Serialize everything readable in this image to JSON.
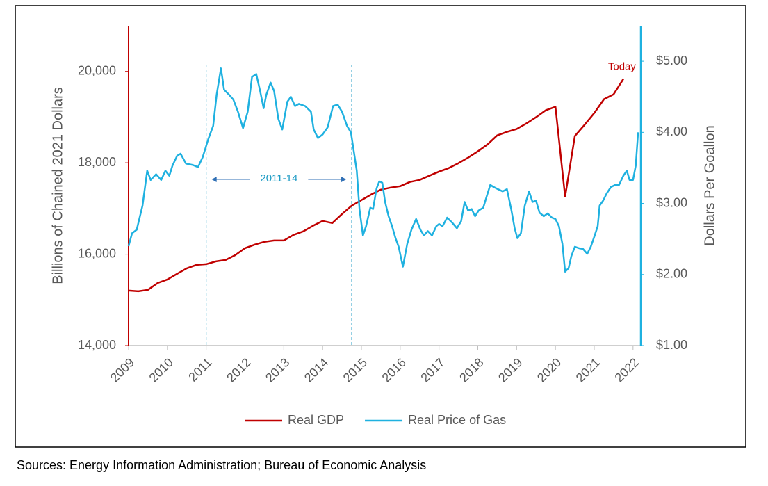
{
  "chart_data": {
    "type": "line",
    "y_label": "Billions of Chained 2021 Dollars",
    "y2_label": "Dollars Per Goallon",
    "annotation": "Today",
    "period": {
      "label": "2011-14",
      "x": [
        2011,
        2014.75
      ]
    },
    "source": "Sources: Energy Information Administration; Bureau of Economic Analysis",
    "xlim": [
      2009,
      2022.2
    ],
    "xticks": [
      2009,
      2010,
      2011,
      2012,
      2013,
      2014,
      2015,
      2016,
      2017,
      2018,
      2019,
      2020,
      2021,
      2022
    ],
    "ylim": [
      14000,
      21000
    ],
    "yticks": [
      {
        "value": 14000,
        "label": "14,000"
      },
      {
        "value": 16000,
        "label": "16,000"
      },
      {
        "value": 18000,
        "label": "18,000"
      },
      {
        "value": 20000,
        "label": "20,000"
      }
    ],
    "y2lim": [
      1,
      5.5
    ],
    "y2ticks": [
      {
        "value": 1,
        "label": "$1.00"
      },
      {
        "value": 2,
        "label": "$2.00"
      },
      {
        "value": 3,
        "label": "$3.00"
      },
      {
        "value": 4,
        "label": "$4.00"
      },
      {
        "value": 5,
        "label": "$5.00"
      }
    ],
    "legend": "bottom",
    "series": [
      {
        "name": "Real GDP",
        "color": "#c00000",
        "axis": "y",
        "x": [
          2009.0,
          2009.25,
          2009.5,
          2009.75,
          2010.0,
          2010.25,
          2010.5,
          2010.75,
          2011.0,
          2011.25,
          2011.5,
          2011.75,
          2012.0,
          2012.25,
          2012.5,
          2012.75,
          2013.0,
          2013.25,
          2013.5,
          2013.75,
          2014.0,
          2014.25,
          2014.5,
          2014.75,
          2015.0,
          2015.25,
          2015.5,
          2015.75,
          2016.0,
          2016.25,
          2016.5,
          2016.75,
          2017.0,
          2017.25,
          2017.5,
          2017.75,
          2018.0,
          2018.25,
          2018.5,
          2018.75,
          2019.0,
          2019.25,
          2019.5,
          2019.75,
          2020.0,
          2020.25,
          2020.5,
          2020.75,
          2021.0,
          2021.25,
          2021.5,
          2021.75
        ],
        "values": [
          15203,
          15188,
          15220,
          15370,
          15447,
          15570,
          15690,
          15767,
          15782,
          15843,
          15873,
          15980,
          16132,
          16209,
          16270,
          16300,
          16300,
          16422,
          16498,
          16620,
          16727,
          16681,
          16879,
          17062,
          17184,
          17305,
          17412,
          17458,
          17488,
          17580,
          17625,
          17717,
          17808,
          17884,
          17991,
          18113,
          18250,
          18402,
          18600,
          18677,
          18738,
          18860,
          18997,
          19150,
          19226,
          17260,
          18585,
          18830,
          19089,
          19393,
          19500,
          19835
        ]
      },
      {
        "name": "Real Price of Gas",
        "color": "#1fb1e0",
        "axis": "y2",
        "x": [
          2009.0,
          2009.09,
          2009.21,
          2009.36,
          2009.48,
          2009.57,
          2009.71,
          2009.84,
          2009.95,
          2010.05,
          2010.13,
          2010.25,
          2010.34,
          2010.48,
          2010.66,
          2010.79,
          2010.91,
          2011.05,
          2011.18,
          2011.27,
          2011.38,
          2011.46,
          2011.59,
          2011.7,
          2011.82,
          2011.95,
          2012.07,
          2012.18,
          2012.29,
          2012.39,
          2012.48,
          2012.55,
          2012.66,
          2012.75,
          2012.86,
          2012.96,
          2013.09,
          2013.18,
          2013.29,
          2013.39,
          2013.55,
          2013.7,
          2013.77,
          2013.88,
          2014.0,
          2014.13,
          2014.27,
          2014.39,
          2014.5,
          2014.63,
          2014.73,
          2014.8,
          2014.88,
          2014.95,
          2015.04,
          2015.12,
          2015.23,
          2015.3,
          2015.39,
          2015.46,
          2015.54,
          2015.61,
          2015.7,
          2015.79,
          2015.88,
          2015.96,
          2016.07,
          2016.18,
          2016.29,
          2016.41,
          2016.52,
          2016.61,
          2016.71,
          2016.82,
          2016.93,
          2017.0,
          2017.09,
          2017.21,
          2017.34,
          2017.46,
          2017.57,
          2017.66,
          2017.75,
          2017.84,
          2017.93,
          2018.02,
          2018.14,
          2018.23,
          2018.32,
          2018.41,
          2018.52,
          2018.64,
          2018.75,
          2018.86,
          2018.95,
          2019.02,
          2019.11,
          2019.21,
          2019.32,
          2019.41,
          2019.5,
          2019.59,
          2019.7,
          2019.8,
          2019.91,
          2020.0,
          2020.09,
          2020.18,
          2020.25,
          2020.34,
          2020.41,
          2020.5,
          2020.61,
          2020.71,
          2020.82,
          2020.91,
          2021.0,
          2021.09,
          2021.14,
          2021.23,
          2021.32,
          2021.43,
          2021.54,
          2021.64,
          2021.75,
          2021.84,
          2021.91,
          2022.0,
          2022.07,
          2022.13
        ],
        "values": [
          2.4,
          2.58,
          2.63,
          2.97,
          3.46,
          3.33,
          3.41,
          3.33,
          3.46,
          3.39,
          3.53,
          3.67,
          3.7,
          3.56,
          3.54,
          3.51,
          3.65,
          3.9,
          4.09,
          4.53,
          4.9,
          4.6,
          4.53,
          4.46,
          4.29,
          4.06,
          4.29,
          4.78,
          4.82,
          4.58,
          4.34,
          4.53,
          4.7,
          4.58,
          4.19,
          4.04,
          4.43,
          4.5,
          4.37,
          4.4,
          4.37,
          4.29,
          4.04,
          3.92,
          3.97,
          4.07,
          4.37,
          4.39,
          4.29,
          4.09,
          4.0,
          3.75,
          3.46,
          2.92,
          2.55,
          2.68,
          2.94,
          2.92,
          3.21,
          3.31,
          3.29,
          3.02,
          2.82,
          2.68,
          2.51,
          2.39,
          2.11,
          2.43,
          2.63,
          2.78,
          2.63,
          2.55,
          2.61,
          2.55,
          2.68,
          2.71,
          2.68,
          2.8,
          2.73,
          2.65,
          2.75,
          3.02,
          2.9,
          2.92,
          2.82,
          2.9,
          2.94,
          3.1,
          3.26,
          3.23,
          3.2,
          3.17,
          3.2,
          2.92,
          2.65,
          2.51,
          2.58,
          2.97,
          3.17,
          3.02,
          3.04,
          2.87,
          2.82,
          2.86,
          2.8,
          2.78,
          2.68,
          2.43,
          2.04,
          2.09,
          2.26,
          2.39,
          2.37,
          2.36,
          2.29,
          2.39,
          2.53,
          2.68,
          2.97,
          3.04,
          3.14,
          3.23,
          3.26,
          3.26,
          3.39,
          3.46,
          3.33,
          3.33,
          3.53,
          4.0
        ]
      }
    ]
  }
}
